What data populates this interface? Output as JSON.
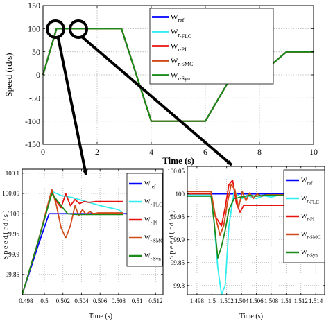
{
  "colors": {
    "ref": "#0000ff",
    "flc": "#33eeee",
    "pi": "#e8130f",
    "smc": "#d14b1a",
    "syn": "#1a8a1a",
    "frame": "#000000",
    "grid": "#b4b4b4"
  },
  "chart_data": [
    {
      "type": "line",
      "xlabel": "Time (s)",
      "ylabel": "Speed (rd/s)",
      "xlim": [
        0,
        10
      ],
      "ylim": [
        -150,
        150
      ],
      "xticks": [
        "0",
        "2",
        "4",
        "6",
        "8",
        "10"
      ],
      "yticks": [
        "150",
        "100",
        "50",
        "0",
        "-50",
        "-100",
        "-150"
      ],
      "grid": true,
      "legend_position": "top-right",
      "series": [
        {
          "name": "Wref",
          "legend_main": "W",
          "legend_sub": "ref",
          "color_key": "ref",
          "x": [
            0,
            0.5,
            2.9,
            4.0,
            6.0,
            7.0,
            8.0,
            9.0,
            10.0
          ],
          "y": [
            0,
            100,
            100,
            -100,
            -100,
            0,
            0,
            50,
            50
          ]
        },
        {
          "name": "Wr-FLC",
          "legend_main": "W",
          "legend_sub": "r",
          "legend_tail": "-FLC",
          "color_key": "flc",
          "x": [
            0,
            0.5,
            2.9,
            4.0,
            6.0,
            7.0,
            8.0,
            9.0,
            10.0
          ],
          "y": [
            0,
            100,
            100,
            -100,
            -100,
            0,
            0,
            50,
            50
          ]
        },
        {
          "name": "Wr-PI",
          "legend_main": "W",
          "legend_sub": "r-PI",
          "color_key": "pi",
          "x": [
            0,
            0.5,
            2.9,
            4.0,
            6.0,
            7.0,
            8.0,
            9.0,
            10.0
          ],
          "y": [
            0,
            100,
            100,
            -100,
            -100,
            0,
            0,
            50,
            50
          ]
        },
        {
          "name": "Wr-SMC",
          "legend_main": "W",
          "legend_sub": "r-SMC",
          "color_key": "smc",
          "x": [
            0,
            0.5,
            2.9,
            4.0,
            6.0,
            7.0,
            8.0,
            9.0,
            10.0
          ],
          "y": [
            0,
            100,
            100,
            -100,
            -100,
            0,
            0,
            50,
            50
          ]
        },
        {
          "name": "Wr-Syn",
          "legend_main": "W",
          "legend_sub": "r-Syn",
          "color_key": "syn",
          "x": [
            0,
            0.5,
            2.9,
            4.0,
            6.0,
            7.0,
            8.0,
            9.0,
            10.0
          ],
          "y": [
            0,
            100,
            100,
            -100,
            -100,
            0,
            0,
            50,
            50
          ]
        }
      ]
    },
    {
      "type": "line",
      "xlabel": "Time (s)",
      "ylabel": "S p e e d   ( r d / s )",
      "xlim": [
        0.4976,
        0.5128
      ],
      "ylim": [
        99.8,
        100.11
      ],
      "xticks": [
        {
          "v": 0.498,
          "label": "0.498"
        },
        {
          "v": 0.5,
          "label": "0.5"
        },
        {
          "v": 0.502,
          "label": "0.502"
        },
        {
          "v": 0.504,
          "label": "0.504"
        },
        {
          "v": 0.506,
          "label": "0.506"
        },
        {
          "v": 0.508,
          "label": "0.508"
        },
        {
          "v": 0.51,
          "label": "0.51"
        },
        {
          "v": 0.512,
          "label": "0.512"
        }
      ],
      "yticks": [
        {
          "v": 100.1,
          "label": "100.1"
        },
        {
          "v": 100.05,
          "label": "100.05"
        },
        {
          "v": 100,
          "label": "100"
        },
        {
          "v": 99.95,
          "label": "99.95"
        },
        {
          "v": 99.9,
          "label": "99.9"
        },
        {
          "v": 99.85,
          "label": "99.85"
        }
      ],
      "grid": true,
      "legend_position": "top-right",
      "series": [
        {
          "name": "Wref",
          "legend_main": "W",
          "legend_sub": "ref",
          "color_key": "ref",
          "x": [
            0.4976,
            0.4993,
            0.5005,
            0.5012,
            0.5128
          ],
          "y": [
            99.8,
            99.92,
            100.0,
            100.0,
            100.0
          ]
        },
        {
          "name": "Wr-FLC",
          "legend_main": "W",
          "legend_sub": "r-FLC",
          "color_key": "flc",
          "x": [
            0.4976,
            0.4993,
            0.5008,
            0.5018,
            0.503,
            0.5045,
            0.506,
            0.508,
            0.5085
          ],
          "y": [
            99.8,
            99.93,
            100.055,
            100.045,
            100.04,
            100.03,
            100.02,
            100.01,
            100.0
          ]
        },
        {
          "name": "Wr-PI",
          "legend_main": "W",
          "legend_sub": "r-PI",
          "color_key": "pi",
          "x": [
            0.4976,
            0.4993,
            0.5008,
            0.5013,
            0.5018,
            0.5023,
            0.5028,
            0.5033,
            0.5038,
            0.5043,
            0.5048,
            0.5055,
            0.5085
          ],
          "y": [
            99.8,
            99.93,
            100.055,
            100.03,
            100.015,
            100.05,
            100.02,
            100.035,
            100.025,
            100.03,
            100.028,
            100.03,
            100.03
          ]
        },
        {
          "name": "Wr-SMC",
          "legend_main": "W",
          "legend_sub": "r-SMC",
          "color_key": "smc",
          "x": [
            0.4976,
            0.4993,
            0.5008,
            0.5013,
            0.5018,
            0.5023,
            0.5028,
            0.5033,
            0.5037,
            0.5041,
            0.5045,
            0.5049,
            0.5053,
            0.5058,
            0.5085
          ],
          "y": [
            99.8,
            99.93,
            100.06,
            100.02,
            99.965,
            99.94,
            99.97,
            100.02,
            99.995,
            100.01,
            99.998,
            100.005,
            100.0,
            100.002,
            100.002
          ]
        },
        {
          "name": "Wr-Syn",
          "legend_main": "W",
          "legend_sub": "r-Syn",
          "color_key": "syn",
          "x": [
            0.4976,
            0.4993,
            0.5008,
            0.5018,
            0.5025,
            0.5035,
            0.5085
          ],
          "y": [
            99.8,
            99.93,
            100.05,
            100.02,
            100.0,
            99.998,
            99.998
          ]
        }
      ]
    },
    {
      "type": "line",
      "xlabel": "Time (s)",
      "ylabel": "S p e e d   ( r d / s )",
      "xlim": [
        1.4967,
        1.5152
      ],
      "ylim": [
        99.78,
        100.06
      ],
      "xticks": [
        {
          "v": 1.498,
          "label": "1.498"
        },
        {
          "v": 1.5,
          "label": "1.5"
        },
        {
          "v": 1.502,
          "label": "1.502"
        },
        {
          "v": 1.504,
          "label": "1.504"
        },
        {
          "v": 1.506,
          "label": "1.506"
        },
        {
          "v": 1.508,
          "label": "1.508"
        },
        {
          "v": 1.51,
          "label": "1.51"
        },
        {
          "v": 1.512,
          "label": "1.512"
        },
        {
          "v": 1.514,
          "label": "1.514"
        }
      ],
      "yticks": [
        {
          "v": 100.05,
          "label": "100.05"
        },
        {
          "v": 100,
          "label": "100"
        },
        {
          "v": 99.95,
          "label": "99.95"
        },
        {
          "v": 99.9,
          "label": "99.9"
        },
        {
          "v": 99.85,
          "label": "99.85"
        },
        {
          "v": 99.8,
          "label": "99.8"
        }
      ],
      "grid": true,
      "legend_position": "top-right",
      "series": [
        {
          "name": "Wref",
          "legend_main": "W",
          "legend_sub": "ref",
          "color_key": "ref",
          "x": [
            1.4967,
            1.5105
          ],
          "y": [
            100.0,
            100.0
          ]
        },
        {
          "name": "Wr-FLC",
          "legend_main": "W",
          "legend_sub": "r",
          "legend_tail": "-FLC",
          "color_key": "flc",
          "x": [
            1.4967,
            1.4999,
            1.5003,
            1.5008,
            1.5013,
            1.5018,
            1.5023,
            1.503,
            1.504,
            1.505,
            1.506,
            1.507,
            1.508,
            1.509,
            1.5105
          ],
          "y": [
            99.998,
            99.998,
            99.94,
            99.84,
            99.765,
            99.8,
            99.93,
            100.005,
            99.99,
            99.995,
            99.99,
            99.996,
            99.993,
            99.997,
            99.997
          ]
        },
        {
          "name": "Wr-PI",
          "legend_main": "W",
          "legend_sub": "r-PI",
          "color_key": "pi",
          "x": [
            1.4967,
            1.4999,
            1.5005,
            1.5013,
            1.5018,
            1.5023,
            1.5028,
            1.5033,
            1.5038,
            1.5043,
            1.5048,
            1.5105
          ],
          "y": [
            100.0,
            100.0,
            99.95,
            99.93,
            99.97,
            100.02,
            100.03,
            99.98,
            99.96,
            99.975,
            99.975,
            99.975
          ]
        },
        {
          "name": "Wr-SMC",
          "legend_main": "W",
          "legend_sub": "r-SMC",
          "color_key": "smc",
          "x": [
            1.4967,
            1.4999,
            1.5005,
            1.5011,
            1.5016,
            1.5021,
            1.5026,
            1.5031,
            1.5036,
            1.5041,
            1.5046,
            1.5051,
            1.5056,
            1.5061,
            1.5067,
            1.5073,
            1.5105
          ],
          "y": [
            100.005,
            100.005,
            99.95,
            99.91,
            99.93,
            99.98,
            100.02,
            100.01,
            99.97,
            100.005,
            99.985,
            100.002,
            99.99,
            100.0,
            99.995,
            99.998,
            99.998
          ]
        },
        {
          "name": "Wr-Syn",
          "legend_main": "W",
          "legend_sub": "r-Syn",
          "color_key": "syn",
          "x": [
            1.4967,
            1.4999,
            1.5003,
            1.5008,
            1.5013,
            1.5018,
            1.5023,
            1.503,
            1.504,
            1.505,
            1.506,
            1.507,
            1.5105
          ],
          "y": [
            99.995,
            99.995,
            99.94,
            99.86,
            99.885,
            99.92,
            99.965,
            99.99,
            99.993,
            99.997,
            99.995,
            99.997,
            99.997
          ]
        }
      ]
    }
  ]
}
